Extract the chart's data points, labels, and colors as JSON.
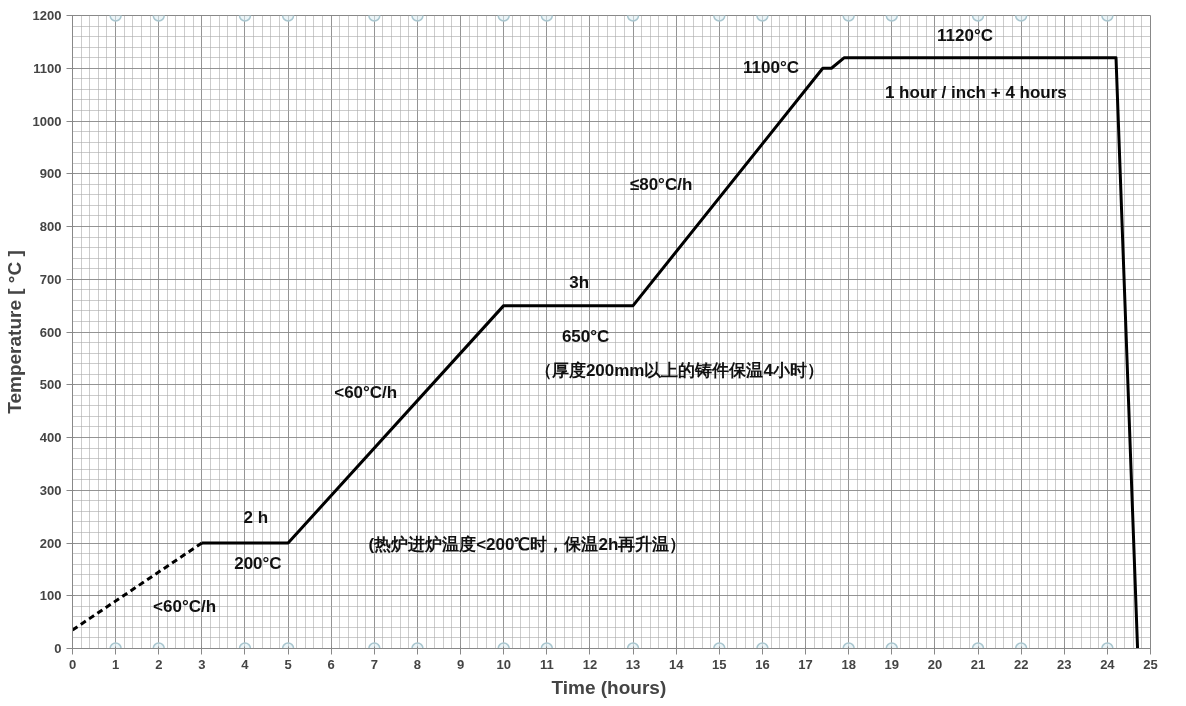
{
  "chart_data": {
    "type": "line",
    "xlabel": "Time  (hours)",
    "ylabel": "Temperature [ °C ]",
    "xlim": [
      0,
      25
    ],
    "ylim": [
      0,
      1200
    ],
    "xticks": [
      0,
      1,
      2,
      3,
      4,
      5,
      6,
      7,
      8,
      9,
      10,
      11,
      12,
      13,
      14,
      15,
      16,
      17,
      18,
      19,
      20,
      21,
      22,
      23,
      24,
      25
    ],
    "yticks": [
      0,
      100,
      200,
      300,
      400,
      500,
      600,
      700,
      800,
      900,
      1000,
      1100,
      1200
    ],
    "grid": true,
    "series": [
      {
        "line_style": "dashed",
        "color": "#000000",
        "x": [
          0,
          3
        ],
        "values": [
          35,
          200
        ]
      },
      {
        "line_style": "solid",
        "color": "#000000",
        "x": [
          3,
          5,
          10,
          13,
          17.4,
          17.6,
          17.9,
          24.2,
          24.7
        ],
        "values": [
          200,
          200,
          650,
          650,
          1100,
          1100,
          1120,
          1120,
          0
        ]
      },
      {
        "type": "scatter",
        "marker": "circle",
        "color": "#a9c6cf",
        "x": [
          1,
          2,
          4,
          5,
          7,
          8,
          10,
          11,
          13,
          15,
          16,
          18,
          19,
          21,
          22,
          24,
          1,
          2,
          4,
          5,
          7,
          8,
          10,
          11,
          13,
          15,
          16,
          18,
          19,
          21,
          22,
          24
        ],
        "values": [
          0,
          0,
          0,
          0,
          0,
          0,
          0,
          0,
          0,
          0,
          0,
          0,
          0,
          0,
          0,
          0,
          1200,
          1200,
          1200,
          1200,
          1200,
          1200,
          1200,
          1200,
          1200,
          1200,
          1200,
          1200,
          1200,
          1200,
          1200,
          1200
        ]
      }
    ],
    "annotations": [
      "<60°C/h",
      "2 h",
      "200°C",
      "<60°C/h",
      "(热炉进炉温度<200℃时，保温2h再升温）",
      "3h",
      "650°C",
      "（厚度200mm以上的铸件保温4小时）",
      "≤80°C/h",
      "1100°C",
      "1120°C",
      "1 hour / inch + 4 hours"
    ]
  }
}
